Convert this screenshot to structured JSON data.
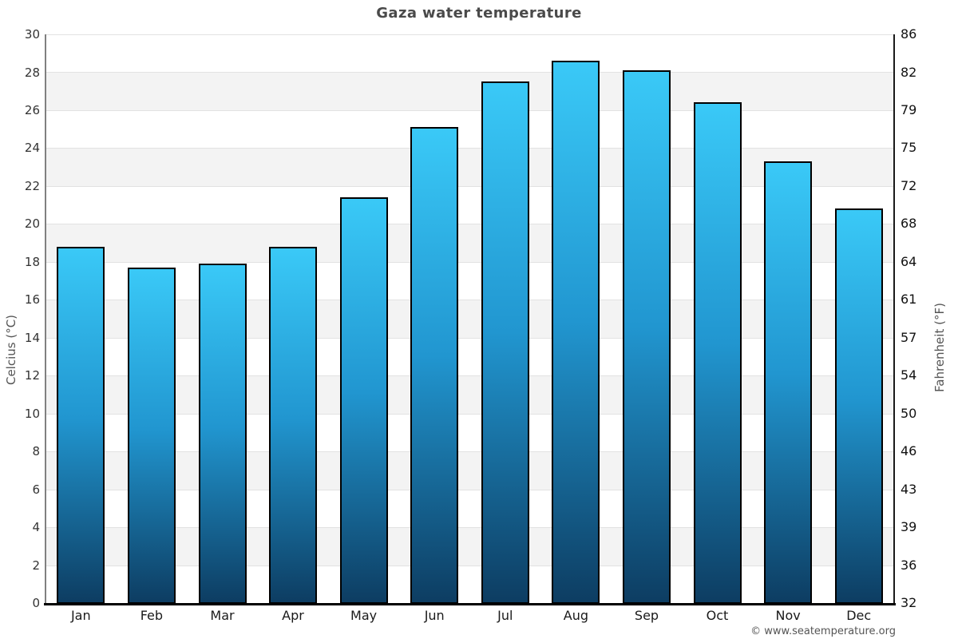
{
  "title": "Gaza water temperature",
  "footer_credit": "© www.seatemperature.org",
  "axes": {
    "left_label": "Celcius (°C)",
    "right_label": "Fahrenheit (°F)",
    "left_ticks": [
      30,
      28,
      26,
      24,
      22,
      20,
      18,
      16,
      14,
      12,
      10,
      8,
      6,
      4,
      2,
      0
    ],
    "right_ticks": [
      86,
      82,
      79,
      75,
      72,
      68,
      64,
      61,
      57,
      54,
      50,
      46,
      43,
      39,
      36,
      32
    ]
  },
  "colors": {
    "bar_top": "#3ac9f7",
    "bar_mid": "#2196d0",
    "bar_bottom": "#0d3d62",
    "bar_border": "#000000",
    "band_gray": "#f3f3f3",
    "band_white": "#ffffff",
    "gridline": "#e2e2e2",
    "left_axis": "#808080",
    "right_axis": "#1a1a1a",
    "baseline": "#000000",
    "title_text": "#4a4a4a"
  },
  "chart_data": {
    "type": "bar",
    "title": "Gaza water temperature",
    "categories": [
      "Jan",
      "Feb",
      "Mar",
      "Apr",
      "May",
      "Jun",
      "Jul",
      "Aug",
      "Sep",
      "Oct",
      "Nov",
      "Dec"
    ],
    "values": [
      18.8,
      17.7,
      17.9,
      18.8,
      21.4,
      25.1,
      27.5,
      28.6,
      28.1,
      26.4,
      23.3,
      20.8
    ],
    "xlabel": "",
    "ylabel_left": "Celcius (°C)",
    "ylabel_right": "Fahrenheit (°F)",
    "ylim": [
      0,
      30
    ],
    "y_step": 2,
    "right_axis_lim": [
      32,
      86
    ],
    "legend": "none",
    "grid": "horizontal gridlines every 2°C with alternating white/gray bands"
  }
}
